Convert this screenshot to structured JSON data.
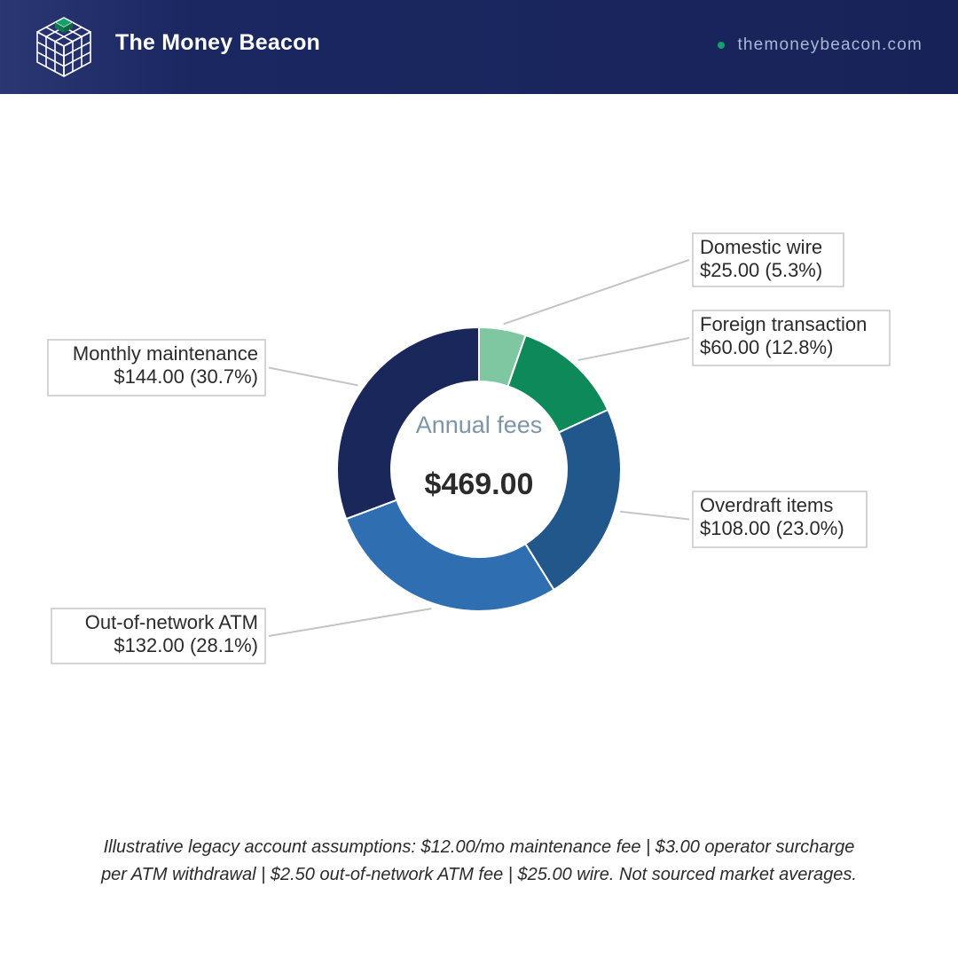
{
  "header": {
    "brand_name": "The Money Beacon",
    "site_url": "themoneybeacon.com",
    "logo_icon": "cube-grid-icon",
    "colors": {
      "background": "#1b2761",
      "accent": "#13a06a"
    }
  },
  "chart_data": {
    "type": "pie",
    "style": "donut",
    "center_title": "Annual fees",
    "center_total": "$469.00",
    "total": 469.0,
    "slices": [
      {
        "label": "Domestic wire",
        "value": 25.0,
        "value_label": "$25.00 (5.3%)",
        "percent": 5.3,
        "color": "#7ec7a1"
      },
      {
        "label": "Foreign transaction",
        "value": 60.0,
        "value_label": "$60.00 (12.8%)",
        "percent": 12.8,
        "color": "#0e8a5a"
      },
      {
        "label": "Overdraft items",
        "value": 108.0,
        "value_label": "$108.00 (23.0%)",
        "percent": 23.0,
        "color": "#22578c"
      },
      {
        "label": "Out-of-network ATM",
        "value": 132.0,
        "value_label": "$132.00 (28.1%)",
        "percent": 28.1,
        "color": "#2f6fb1"
      },
      {
        "label": "Monthly maintenance",
        "value": 144.0,
        "value_label": "$144.00 (30.7%)",
        "percent": 30.7,
        "color": "#19275a"
      }
    ]
  },
  "footnote": {
    "line1": "Illustrative legacy account assumptions: $12.00/mo maintenance fee | $3.00 operator surcharge",
    "line2": "per ATM withdrawal | $2.50 out-of-network ATM fee | $25.00 wire. Not sourced market averages."
  }
}
